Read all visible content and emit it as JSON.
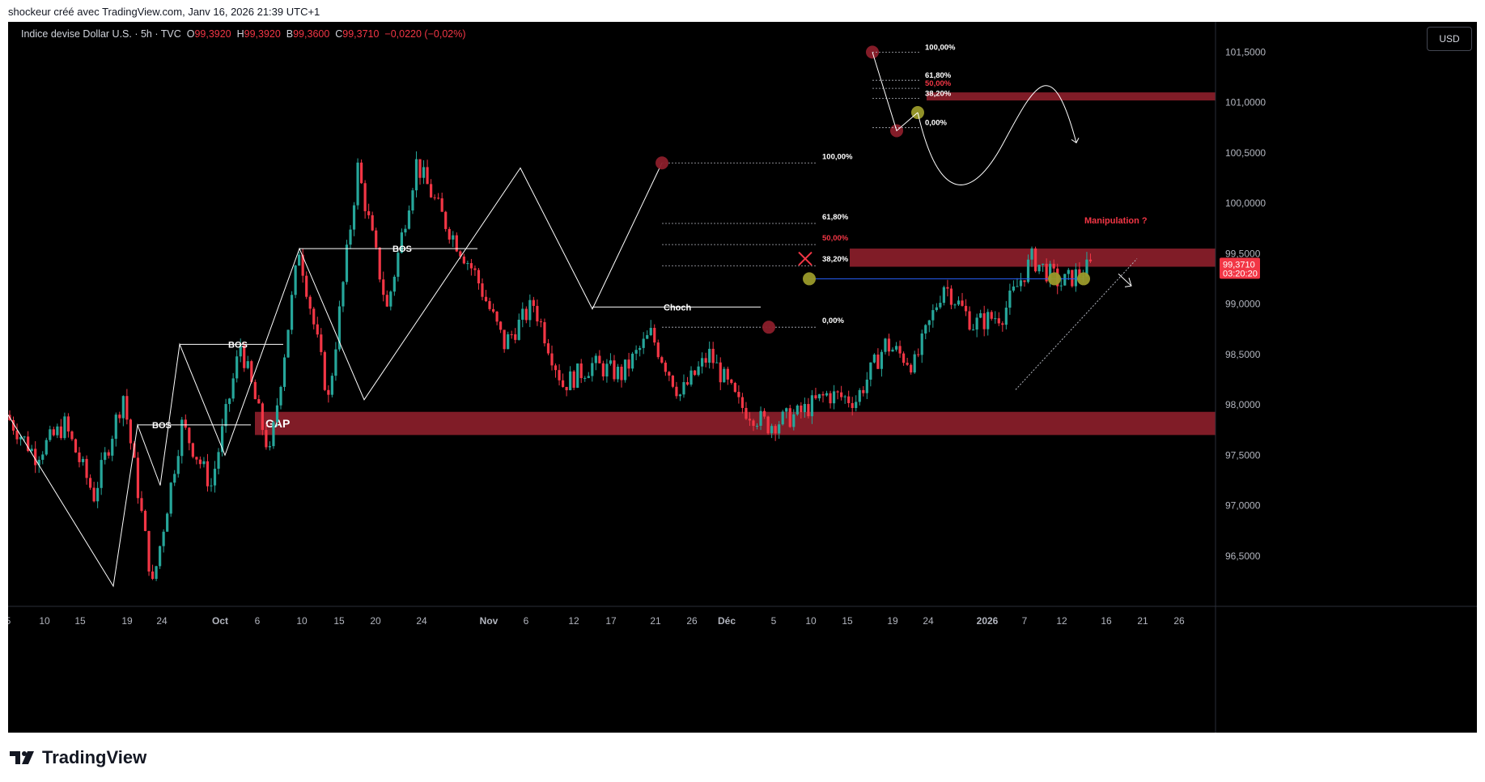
{
  "header": {
    "caption": "shockeur créé avec TradingView.com, Janv 16, 2026 21:39 UTC+1"
  },
  "symbol": {
    "name": "Indice devise Dollar U.S. · 5h · TVC",
    "open_key": "O",
    "open": "99,3920",
    "high_key": "H",
    "high": "99,3920",
    "low_key": "B",
    "low": "99,3600",
    "close_key": "C",
    "close": "99,3710",
    "change": "−0,0220 (−0,02%)"
  },
  "currency_button": "USD",
  "current_price": {
    "value": "99,3710",
    "countdown": "03:20:20"
  },
  "footer": {
    "brand": "TradingView"
  },
  "colors": {
    "background": "#000000",
    "bull": "#26a69a",
    "bear": "#f23645",
    "zone": "#8b1e2a",
    "fib_line": "#b2b5be",
    "marker_red": "#8b1e2a",
    "marker_yellow": "#9a9a2a",
    "level_line": "#2962ff"
  },
  "chart_data": {
    "type": "candlestick",
    "instrument": "Indice devise Dollar U.S.",
    "timeframe": "5h",
    "source": "TVC",
    "ylim": [
      96.0,
      101.8
    ],
    "y_ticks": [
      "101,5000",
      "101,0000",
      "100,5000",
      "100,0000",
      "99,5000",
      "99,0000",
      "98,5000",
      "98,0000",
      "97,5000",
      "97,0000",
      "96,5000"
    ],
    "x_ticks": [
      "5",
      "10",
      "15",
      "19",
      "24",
      "Oct",
      "6",
      "10",
      "15",
      "20",
      "24",
      "Nov",
      "6",
      "12",
      "17",
      "21",
      "26",
      "Déc",
      "5",
      "10",
      "15",
      "19",
      "24",
      "2026",
      "7",
      "12",
      "16",
      "21",
      "26"
    ],
    "swing_path": [
      97.9,
      97.5,
      97.8,
      97.1,
      98.1,
      96.2,
      97.8,
      97.2,
      98.6,
      97.5,
      99.55,
      98.05,
      100.35,
      98.95,
      100.4,
      99.8,
      99.3,
      98.6,
      99.0,
      98.2,
      98.4,
      98.3,
      98.7,
      98.1,
      98.5,
      98.0,
      97.8,
      97.9,
      98.1,
      98.05,
      98.6,
      98.4,
      99.2,
      98.8,
      98.9,
      99.45,
      99.2,
      99.37
    ],
    "annotations": {
      "bos_labels": [
        "BOS",
        "BOS",
        "BOS"
      ],
      "choch_label": "Choch",
      "gap_label": "GAP",
      "manipulation_label": "Manipulation ?",
      "fib_main": [
        "100,00%",
        "61,80%",
        "50,00%",
        "38,20%",
        "0,00%"
      ],
      "fib_projection": [
        "100,00%",
        "61,80%",
        "50,00%",
        "38,20%",
        "0,00%"
      ]
    },
    "zones": [
      {
        "name": "GAP",
        "from": 97.7,
        "to": 97.93
      },
      {
        "name": "premium-zone",
        "from": 99.37,
        "to": 99.55
      },
      {
        "name": "projection-zone",
        "from": 101.02,
        "to": 101.1
      }
    ]
  }
}
